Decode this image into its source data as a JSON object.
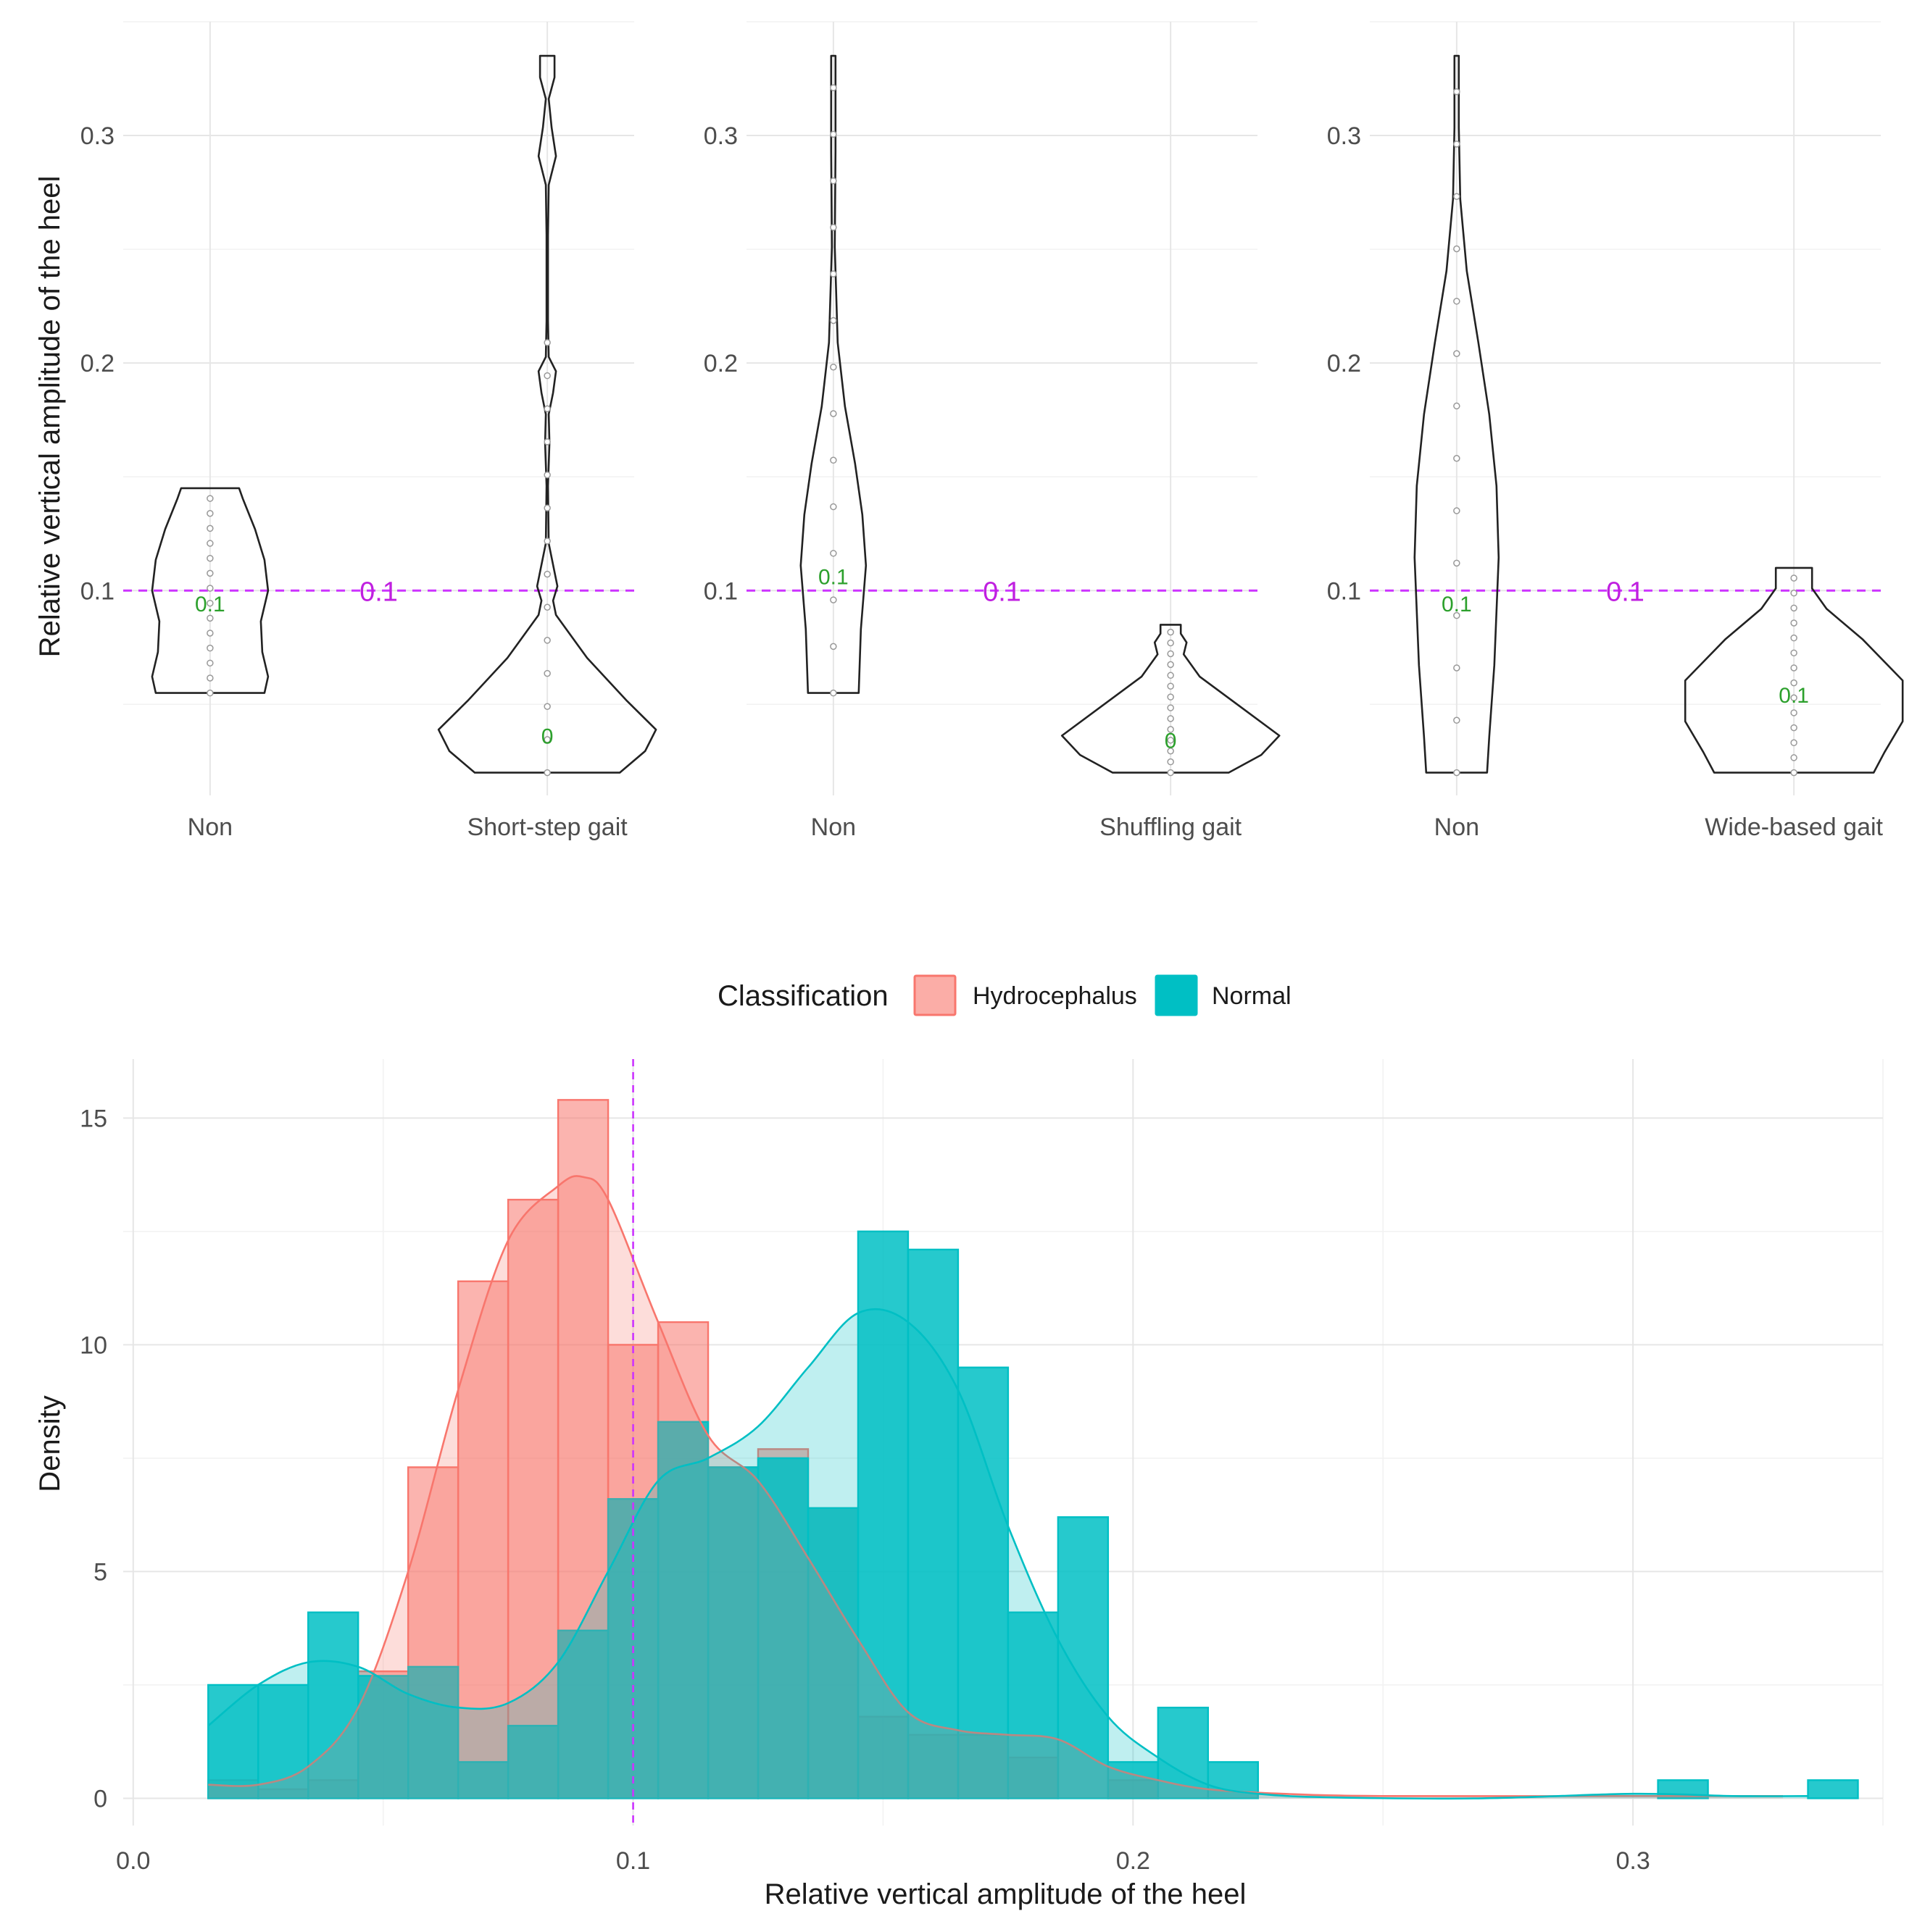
{
  "violin_panels": {
    "y_axis_title": "Relative vertical amplitude of the heel",
    "y_ticks": [
      "0.1",
      "0.2",
      "0.3"
    ],
    "ylim": [
      0.01,
      0.35
    ],
    "threshold": {
      "value": 0.1,
      "label": "0.1",
      "color": "#cc33ff"
    },
    "panels": [
      {
        "groups": [
          {
            "label": "Non",
            "min": 0.055,
            "max": 0.145,
            "median_label": "0.1",
            "median_y": 0.094
          },
          {
            "label": "Short-step gait",
            "min": 0.02,
            "max": 0.335,
            "median_label": "0",
            "median_y": 0.036
          }
        ]
      },
      {
        "groups": [
          {
            "label": "Non",
            "min": 0.055,
            "max": 0.335,
            "median_label": "0.1",
            "median_y": 0.106
          },
          {
            "label": "Shuffling gait",
            "min": 0.02,
            "max": 0.085,
            "median_label": "0",
            "median_y": 0.034
          }
        ]
      },
      {
        "groups": [
          {
            "label": "Non",
            "min": 0.02,
            "max": 0.335,
            "median_label": "0.1",
            "median_y": 0.094
          },
          {
            "label": "Wide-based gait",
            "min": 0.02,
            "max": 0.11,
            "median_label": "0.1",
            "median_y": 0.054
          }
        ]
      }
    ]
  },
  "legend": {
    "title": "Classification",
    "items": [
      {
        "label": "Hydrocephalus",
        "color": "#f8766d"
      },
      {
        "label": "Normal",
        "color": "#00bfc4"
      }
    ]
  },
  "chart_data": {
    "type": "histogram",
    "title": "",
    "xlabel": "Relative vertical amplitude of the heel",
    "ylabel": "Density",
    "xlim": [
      -0.002,
      0.35
    ],
    "ylim": [
      -0.6,
      16.3
    ],
    "x_ticks": [
      "0.0",
      "0.1",
      "0.2",
      "0.3"
    ],
    "y_ticks": [
      "0",
      "5",
      "10",
      "15"
    ],
    "threshold": 0.1,
    "bin_start": 0.015,
    "bin_width": 0.01,
    "series": [
      {
        "name": "Hydrocephalus",
        "color": "#f8766d",
        "values": [
          0.4,
          0.2,
          0.4,
          2.8,
          7.3,
          11.4,
          13.2,
          15.4,
          10.0,
          10.5,
          7.3,
          7.7,
          6.4,
          1.8,
          1.4,
          1.4,
          0.9,
          0.0,
          0.4,
          0,
          0,
          0,
          0,
          0,
          0,
          0,
          0,
          0,
          0,
          0,
          0,
          0
        ],
        "density_x": [
          0.015,
          0.025,
          0.035,
          0.045,
          0.055,
          0.065,
          0.075,
          0.085,
          0.09,
          0.095,
          0.105,
          0.115,
          0.125,
          0.135,
          0.145,
          0.155,
          0.165,
          0.175,
          0.185,
          0.195,
          0.205,
          0.215,
          0.23,
          0.25,
          0.3,
          0.33
        ],
        "density_y": [
          0.3,
          0.3,
          0.7,
          2.0,
          5.0,
          9.0,
          12.3,
          13.5,
          13.7,
          13.2,
          10.5,
          8.0,
          7.0,
          5.3,
          3.5,
          1.9,
          1.5,
          1.4,
          1.3,
          0.7,
          0.4,
          0.2,
          0.1,
          0.05,
          0.05,
          0.05
        ]
      },
      {
        "name": "Normal",
        "color": "#00bfc4",
        "values": [
          2.5,
          2.5,
          4.1,
          2.7,
          2.9,
          0.8,
          1.6,
          3.7,
          6.6,
          8.3,
          7.3,
          7.5,
          6.4,
          12.5,
          12.1,
          9.5,
          4.1,
          6.2,
          0.8,
          2.0,
          0.8,
          0,
          0,
          0,
          0,
          0,
          0,
          0,
          0,
          0.4,
          0.0,
          0.0,
          0.4
        ],
        "density_x": [
          0.015,
          0.025,
          0.035,
          0.045,
          0.055,
          0.065,
          0.075,
          0.085,
          0.095,
          0.105,
          0.115,
          0.125,
          0.135,
          0.145,
          0.155,
          0.165,
          0.175,
          0.185,
          0.195,
          0.205,
          0.215,
          0.225,
          0.24,
          0.27,
          0.3,
          0.32,
          0.335
        ],
        "density_y": [
          1.6,
          2.5,
          3.0,
          2.9,
          2.3,
          2.0,
          2.1,
          3.0,
          5.0,
          7.0,
          7.5,
          8.2,
          9.5,
          10.7,
          10.5,
          9.0,
          6.0,
          3.5,
          1.8,
          0.9,
          0.3,
          0.1,
          0.02,
          0.0,
          0.1,
          0.05,
          0.05
        ]
      }
    ]
  }
}
